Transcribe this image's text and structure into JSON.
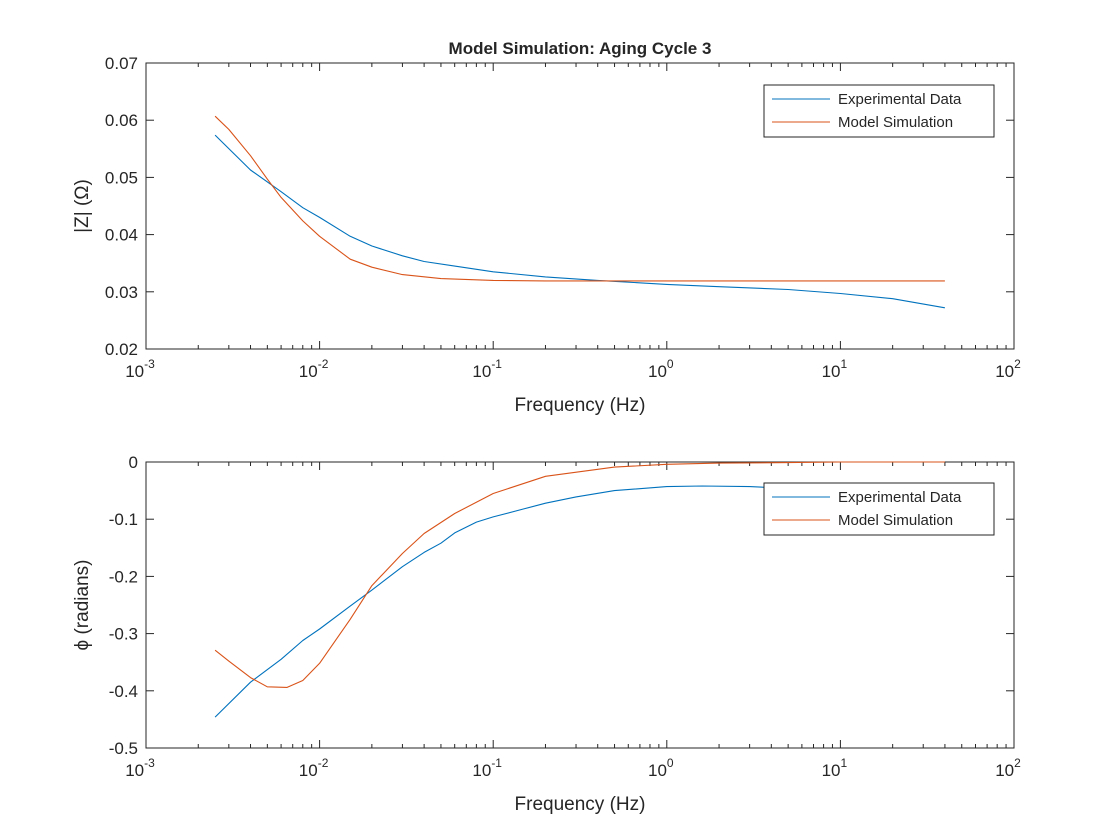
{
  "figure": {
    "title": "Model Simulation: Aging Cycle 3"
  },
  "colors": {
    "experimental": "#0072BD",
    "model": "#D95319",
    "axis": "#262626"
  },
  "chart_data": [
    {
      "type": "line",
      "title": "Model Simulation: Aging Cycle 3",
      "xlabel": "Frequency (Hz)",
      "ylabel": "|Z| (Ω)",
      "xscale": "log",
      "xlim": [
        0.001,
        100
      ],
      "ylim": [
        0.02,
        0.07
      ],
      "xticks": [
        0.001,
        0.01,
        0.1,
        1,
        10,
        100
      ],
      "xtick_labels": [
        {
          "base": "10",
          "exp": "-3"
        },
        {
          "base": "10",
          "exp": "-2"
        },
        {
          "base": "10",
          "exp": "-1"
        },
        {
          "base": "10",
          "exp": "0"
        },
        {
          "base": "10",
          "exp": "1"
        },
        {
          "base": "10",
          "exp": "2"
        }
      ],
      "yticks": [
        0.02,
        0.03,
        0.04,
        0.05,
        0.06,
        0.07
      ],
      "ytick_labels": [
        "0.02",
        "0.03",
        "0.04",
        "0.05",
        "0.06",
        "0.07"
      ],
      "grid": false,
      "legend": "top-right",
      "series": [
        {
          "name": "Experimental Data",
          "x": [
            0.0025,
            0.004,
            0.006,
            0.008,
            0.01,
            0.015,
            0.02,
            0.03,
            0.04,
            0.06,
            0.1,
            0.2,
            0.4,
            1,
            2,
            5,
            10,
            20,
            40
          ],
          "y": [
            0.0574,
            0.0513,
            0.0475,
            0.0447,
            0.043,
            0.0397,
            0.038,
            0.0363,
            0.0353,
            0.0345,
            0.0335,
            0.0326,
            0.032,
            0.0313,
            0.0309,
            0.0304,
            0.0297,
            0.0288,
            0.0272
          ]
        },
        {
          "name": "Model Simulation",
          "x": [
            0.0025,
            0.003,
            0.004,
            0.005,
            0.006,
            0.008,
            0.01,
            0.015,
            0.02,
            0.03,
            0.05,
            0.1,
            0.2,
            0.5,
            1,
            10,
            40
          ],
          "y": [
            0.0607,
            0.0584,
            0.0538,
            0.0497,
            0.0465,
            0.0424,
            0.0397,
            0.0357,
            0.0343,
            0.033,
            0.0323,
            0.032,
            0.0319,
            0.0319,
            0.0319,
            0.0319,
            0.0319
          ]
        }
      ]
    },
    {
      "type": "line",
      "xlabel": "Frequency (Hz)",
      "ylabel": "ϕ (radians)",
      "xscale": "log",
      "xlim": [
        0.001,
        100
      ],
      "ylim": [
        -0.5,
        0
      ],
      "xticks": [
        0.001,
        0.01,
        0.1,
        1,
        10,
        100
      ],
      "xtick_labels": [
        {
          "base": "10",
          "exp": "-3"
        },
        {
          "base": "10",
          "exp": "-2"
        },
        {
          "base": "10",
          "exp": "-1"
        },
        {
          "base": "10",
          "exp": "0"
        },
        {
          "base": "10",
          "exp": "1"
        },
        {
          "base": "10",
          "exp": "2"
        }
      ],
      "yticks": [
        -0.5,
        -0.4,
        -0.3,
        -0.2,
        -0.1,
        0
      ],
      "ytick_labels": [
        "-0.5",
        "-0.4",
        "-0.3",
        "-0.2",
        "-0.1",
        "0"
      ],
      "grid": false,
      "legend": "top-right",
      "series": [
        {
          "name": "Experimental Data",
          "x": [
            0.0025,
            0.004,
            0.006,
            0.008,
            0.01,
            0.015,
            0.02,
            0.03,
            0.04,
            0.05,
            0.06,
            0.08,
            0.1,
            0.15,
            0.2,
            0.3,
            0.5,
            1,
            1.6,
            3,
            5,
            10,
            20,
            40
          ],
          "y": [
            -0.446,
            -0.385,
            -0.345,
            -0.312,
            -0.292,
            -0.252,
            -0.224,
            -0.183,
            -0.158,
            -0.142,
            -0.124,
            -0.105,
            -0.096,
            -0.082,
            -0.072,
            -0.061,
            -0.05,
            -0.043,
            -0.042,
            -0.043,
            -0.046,
            -0.05,
            -0.052,
            -0.052
          ]
        },
        {
          "name": "Model Simulation",
          "x": [
            0.0025,
            0.003,
            0.004,
            0.005,
            0.0065,
            0.008,
            0.01,
            0.015,
            0.02,
            0.03,
            0.04,
            0.06,
            0.1,
            0.2,
            0.5,
            1,
            2,
            5,
            10,
            40
          ],
          "y": [
            -0.329,
            -0.348,
            -0.377,
            -0.393,
            -0.394,
            -0.382,
            -0.352,
            -0.275,
            -0.216,
            -0.16,
            -0.125,
            -0.09,
            -0.055,
            -0.025,
            -0.009,
            -0.004,
            -0.002,
            -0.001,
            0.0,
            0.0
          ]
        }
      ]
    }
  ]
}
